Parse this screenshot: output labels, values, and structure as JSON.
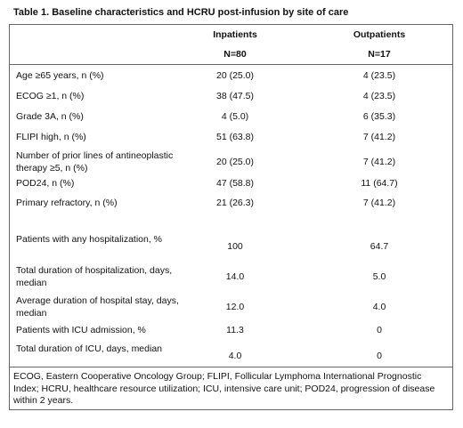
{
  "table": {
    "title": "Table 1. Baseline characteristics and HCRU post-infusion by site of care",
    "columns": [
      {
        "label": "Inpatients",
        "n": "N=80"
      },
      {
        "label": "Outpatients",
        "n": "N=17"
      }
    ],
    "rows": [
      {
        "label": "Age ≥65 years, n (%)",
        "inpatients": "20 (25.0)",
        "outpatients": "4 (23.5)"
      },
      {
        "label": "ECOG ≥1, n (%)",
        "inpatients": "38 (47.5)",
        "outpatients": "4 (23.5)"
      },
      {
        "label": "Grade 3A, n (%)",
        "inpatients": "4 (5.0)",
        "outpatients": "6 (35.3)"
      },
      {
        "label": "FLIPI high, n (%)",
        "inpatients": "51 (63.8)",
        "outpatients": "7 (41.2)"
      },
      {
        "label": "Number of prior lines of antineoplastic therapy ≥5, n (%)",
        "inpatients": "20 (25.0)",
        "outpatients": "7 (41.2)"
      },
      {
        "label": "POD24, n (%)",
        "inpatients": "47 (58.8)",
        "outpatients": "11 (64.7)"
      },
      {
        "label": "Primary refractory, n (%)",
        "inpatients": "21 (26.3)",
        "outpatients": "7 (41.2)"
      },
      {
        "label": "Patients with any hospitalization, %",
        "inpatients": "100",
        "outpatients": "64.7"
      },
      {
        "label": "Total duration of hospitalization, days, median",
        "inpatients": "14.0",
        "outpatients": "5.0"
      },
      {
        "label": "Average duration of hospital stay, days, median",
        "inpatients": "12.0",
        "outpatients": "4.0"
      },
      {
        "label": "Patients with ICU admission, %",
        "inpatients": "11.3",
        "outpatients": "0"
      },
      {
        "label": "Total duration of ICU, days, median",
        "inpatients": "4.0",
        "outpatients": "0"
      }
    ],
    "footnote": "ECOG, Eastern Cooperative Oncology Group; FLIPI, Follicular Lymphoma International Prognostic Index; HCRU, healthcare resource utilization; ICU, intensive care unit; POD24, progression of disease within 2 years."
  }
}
